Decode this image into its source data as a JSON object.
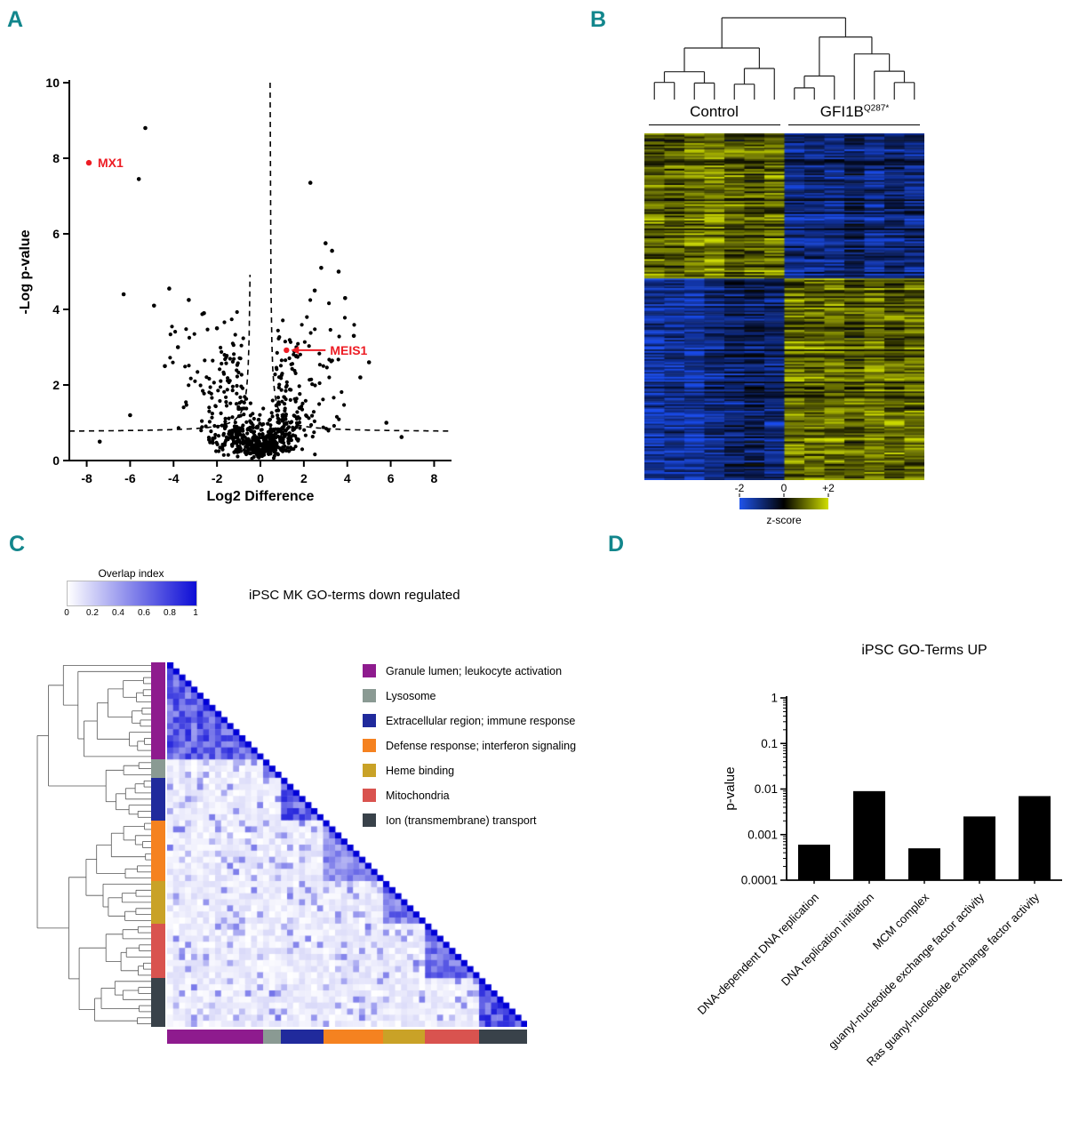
{
  "figure": {
    "background": "#ffffff",
    "panel_label_color": "#12868c"
  },
  "panels": {
    "a": "A",
    "b": "B",
    "c": "C",
    "d": "D"
  },
  "chart_data": [
    {
      "panel": "A",
      "type": "scatter",
      "xlabel": "Log2 Difference",
      "ylabel": "-Log p-value",
      "xlim": [
        -8.8,
        8.8
      ],
      "ylim": [
        0,
        10
      ],
      "xticks": [
        -8,
        -6,
        -4,
        -2,
        0,
        2,
        4,
        6,
        8
      ],
      "yticks": [
        0,
        2,
        4,
        6,
        8,
        10
      ],
      "point_color": "#000000",
      "threshold_curve": {
        "style": "dashed",
        "x0": 0.42,
        "c": 0.75,
        "k": 0.25
      },
      "labeled_points": [
        {
          "name": "MX1",
          "x": -7.9,
          "y": 7.88,
          "color": "#ed1c24",
          "arrow": false
        },
        {
          "name": "MEIS1",
          "x": 1.2,
          "y": 2.92,
          "color": "#ed1c24",
          "arrow": true
        }
      ],
      "outlier_points": [
        [
          -5.3,
          8.8
        ],
        [
          -5.6,
          7.45
        ],
        [
          2.3,
          7.35
        ],
        [
          -6.3,
          4.4
        ],
        [
          -4.9,
          4.1
        ],
        [
          -4.2,
          4.55
        ],
        [
          -3.3,
          4.25
        ],
        [
          -2.6,
          3.9
        ],
        [
          3.0,
          5.75
        ],
        [
          3.3,
          5.55
        ],
        [
          2.8,
          5.1
        ],
        [
          3.6,
          5.0
        ],
        [
          2.5,
          4.5
        ],
        [
          3.9,
          4.3
        ],
        [
          -2.0,
          3.5
        ],
        [
          4.3,
          3.3
        ],
        [
          5.0,
          2.6
        ],
        [
          4.6,
          2.2
        ],
        [
          -3.8,
          3.0
        ],
        [
          -4.4,
          2.5
        ],
        [
          -6.0,
          1.2
        ],
        [
          -7.4,
          0.5
        ],
        [
          5.8,
          1.0
        ],
        [
          6.5,
          0.62
        ]
      ],
      "cloud": {
        "n_core": 520,
        "n_mid": 150,
        "n_outer": 45,
        "seed": 7
      }
    },
    {
      "panel": "B",
      "type": "heatmap",
      "groups": [
        {
          "label": "Control",
          "columns": 7
        },
        {
          "label": "GFI1B",
          "superscript": "Q287*",
          "columns": 7
        }
      ],
      "rows": 215,
      "up_fraction": 0.42,
      "colorscale": {
        "min": -2,
        "mid": 0,
        "max": 2,
        "neg_color": "#1F54EC",
        "mid_color": "#000000",
        "pos_color": "#D0DE00"
      },
      "colorbar": {
        "tick_labels": [
          "-2",
          "0",
          "+2"
        ],
        "label": "z-score"
      },
      "seed": 11
    },
    {
      "panel": "C",
      "type": "triangular-heatmap",
      "title": "iPSC MK GO-terms down regulated",
      "colorbar": {
        "label": "Overlap index",
        "tick_labels": [
          "0",
          "0.2",
          "0.4",
          "0.6",
          "0.8",
          "1"
        ],
        "min_color": "#FFFFFF",
        "max_color": "#0D0DD6"
      },
      "n_terms": 60,
      "clusters": [
        {
          "label": "Granule lumen; leukocyte activation",
          "color": "#8E1B8E",
          "count": 16
        },
        {
          "label": "Lysosome",
          "color": "#8A9A93",
          "count": 3
        },
        {
          "label": "Extracellular region; immune response",
          "color": "#202A9C",
          "count": 7
        },
        {
          "label": "Defense response; interferon signaling",
          "color": "#F58220",
          "count": 10
        },
        {
          "label": "Heme binding",
          "color": "#C9A227",
          "count": 7
        },
        {
          "label": "Mitochondria",
          "color": "#D9534F",
          "count": 9
        },
        {
          "label": "Ion (transmembrane) transport",
          "color": "#39424A",
          "count": 8
        }
      ],
      "seed": 5
    },
    {
      "panel": "D",
      "type": "bar",
      "title": "iPSC GO-Terms UP",
      "ylabel": "p-value",
      "yscale": "log",
      "ylim": [
        0.0001,
        1
      ],
      "ytick_labels": [
        "1",
        "0.1",
        "0.01",
        "0.001",
        "0.0001"
      ],
      "categories": [
        "DNA-dependent DNA replication",
        "DNA replication initiation",
        "MCM complex",
        "guanyl-nucleotide exchange factor activity",
        "Ras guanyl-nucleotide exchange factor activity"
      ],
      "values": [
        0.0006,
        0.009,
        0.0005,
        0.0025,
        0.007
      ],
      "bar_color": "#000000"
    }
  ]
}
